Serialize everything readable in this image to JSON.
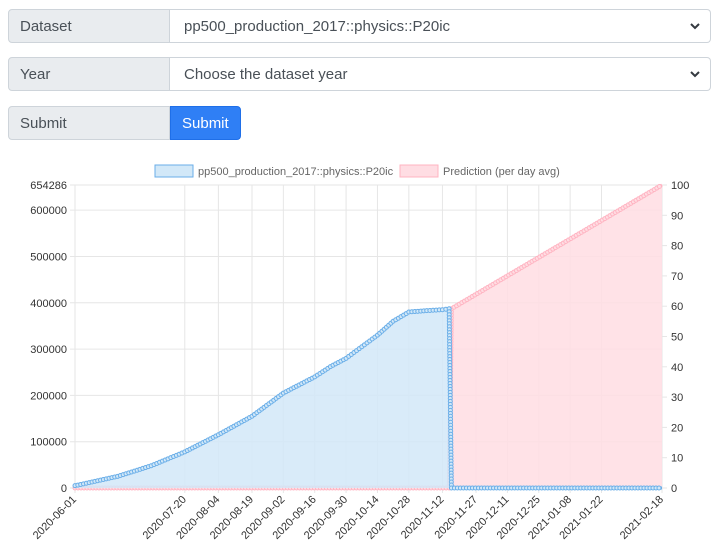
{
  "form": {
    "dataset_label": "Dataset",
    "dataset_value": "pp500_production_2017::physics::P20ic",
    "year_label": "Year",
    "year_value": "Choose the dataset year",
    "submit_label": "Submit",
    "submit_button": "Submit"
  },
  "colors": {
    "series1_fill": "#d2e8f8",
    "series1_line": "#6aaee8",
    "series2_fill": "#ffdde3",
    "series2_line": "#ffb4c2"
  },
  "chart_data": {
    "type": "line",
    "title": "",
    "xlabel": "",
    "ylabel": "",
    "grid": true,
    "legend_placement": "top",
    "x_range": [
      "2020-06-01",
      "2021-02-18"
    ],
    "x_tick_labels": [
      "2020-06-01",
      "2020-07-20",
      "2020-08-04",
      "2020-08-19",
      "2020-09-02",
      "2020-09-16",
      "2020-09-30",
      "2020-10-14",
      "2020-10-28",
      "2020-11-12",
      "2020-11-27",
      "2020-12-11",
      "2020-12-25",
      "2021-01-08",
      "2021-01-22",
      "2021-02-18"
    ],
    "y_left": {
      "range": [
        0,
        654286
      ],
      "ticks": [
        0,
        100000,
        200000,
        300000,
        400000,
        500000,
        600000,
        654286
      ]
    },
    "y_right": {
      "range": [
        0,
        100
      ],
      "ticks": [
        0,
        10,
        20,
        30,
        40,
        50,
        60,
        70,
        80,
        90,
        100
      ]
    },
    "series": [
      {
        "name": "pp500_production_2017::physics::P20ic",
        "axis": "left",
        "x": [
          "2020-06-01",
          "2020-06-20",
          "2020-07-05",
          "2020-07-20",
          "2020-08-04",
          "2020-08-19",
          "2020-09-02",
          "2020-09-16",
          "2020-09-23",
          "2020-09-30",
          "2020-10-07",
          "2020-10-14",
          "2020-10-21",
          "2020-10-28",
          "2020-11-05",
          "2020-11-12",
          "2020-11-15",
          "2020-11-16",
          "2021-02-18"
        ],
        "values": [
          5000,
          25000,
          48000,
          78000,
          115000,
          155000,
          205000,
          240000,
          262000,
          280000,
          305000,
          330000,
          360000,
          380000,
          383000,
          385000,
          387000,
          0,
          0
        ]
      },
      {
        "name": "Prediction (per day avg)",
        "axis": "left",
        "x": [
          "2020-06-01",
          "2020-11-15",
          "2020-11-16",
          "2021-02-18"
        ],
        "values": [
          0,
          0,
          387000,
          654286
        ]
      }
    ]
  }
}
